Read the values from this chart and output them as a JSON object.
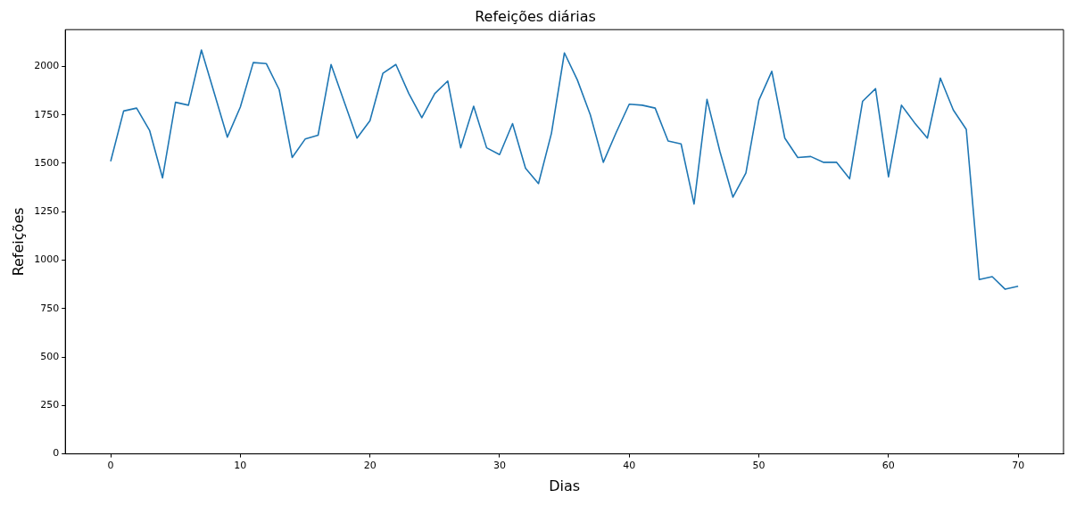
{
  "chart_data": {
    "type": "line",
    "title": "Refeições diárias",
    "xlabel": "Dias",
    "ylabel": "Refeições",
    "x": [
      0,
      1,
      2,
      3,
      4,
      5,
      6,
      7,
      8,
      9,
      10,
      11,
      12,
      13,
      14,
      15,
      16,
      17,
      18,
      19,
      20,
      21,
      22,
      23,
      24,
      25,
      26,
      27,
      28,
      29,
      30,
      31,
      32,
      33,
      34,
      35,
      36,
      37,
      38,
      39,
      40,
      41,
      42,
      43,
      44,
      45,
      46,
      47,
      48,
      49,
      50,
      51,
      52,
      53,
      54,
      55,
      56,
      57,
      58,
      59,
      60,
      61,
      62,
      63,
      64,
      65,
      66,
      67,
      68,
      69,
      70
    ],
    "series": [
      {
        "color": "#1f77b4",
        "values": [
          1510,
          1770,
          1785,
          1670,
          1425,
          1815,
          1800,
          2085,
          1860,
          1635,
          1790,
          2020,
          2015,
          1880,
          1530,
          1625,
          1645,
          2010,
          1820,
          1630,
          1720,
          1965,
          2010,
          1860,
          1735,
          1860,
          1925,
          1580,
          1795,
          1580,
          1545,
          1705,
          1475,
          1395,
          1655,
          2070,
          1930,
          1750,
          1505,
          1660,
          1805,
          1800,
          1785,
          1615,
          1600,
          1290,
          1830,
          1560,
          1325,
          1450,
          1825,
          1975,
          1630,
          1530,
          1535,
          1505,
          1505,
          1420,
          1820,
          1885,
          1430,
          1800,
          1710,
          1630,
          1940,
          1775,
          1675,
          900,
          915,
          850,
          865
        ]
      }
    ],
    "xlim": [
      -3.5,
      73.5
    ],
    "xticks": [
      0,
      10,
      20,
      30,
      40,
      50,
      60,
      70
    ],
    "ylim": [
      0,
      2190
    ],
    "yticks": [
      0,
      250,
      500,
      750,
      1000,
      1250,
      1500,
      1750,
      2000
    ],
    "grid": false,
    "marker": "none",
    "line_style": "solid"
  }
}
